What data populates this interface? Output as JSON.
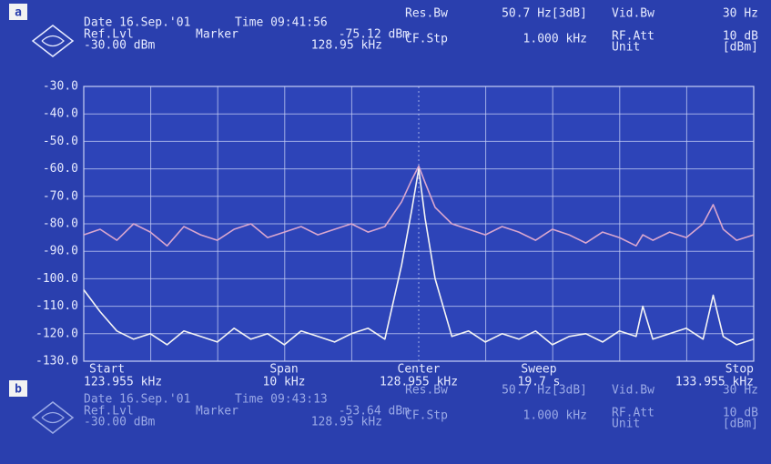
{
  "panels": [
    {
      "label": "a",
      "header": {
        "date": "Date 16.Sep.'01",
        "time": "Time 09:41:56",
        "ref_lvl_label": "Ref.Lvl",
        "ref_lvl": "-30.00 dBm",
        "marker_label": "Marker",
        "marker_level": "-75.12 dBm",
        "marker_freq": "128.95 kHz",
        "res_bw_label": "Res.Bw",
        "res_bw": "50.7 Hz[3dB]",
        "vid_bw_label": "Vid.Bw",
        "vid_bw": "30 Hz",
        "cf_stp_label": "CF.Stp",
        "cf_stp": "1.000 kHz",
        "rf_att_label": "RF.Att",
        "rf_att": "10 dB",
        "unit_label": "Unit",
        "unit": "[dBm]"
      }
    },
    {
      "label": "b",
      "header": {
        "date": "Date 16.Sep.'01",
        "time": "Time 09:43:13",
        "ref_lvl_label": "Ref.Lvl",
        "ref_lvl": "-30.00 dBm",
        "marker_label": "Marker",
        "marker_level": "-53.64 dBm",
        "marker_freq": "128.95 kHz",
        "res_bw_label": "Res.Bw",
        "res_bw": "50.7 Hz[3dB]",
        "vid_bw_label": "Vid.Bw",
        "vid_bw": "30 Hz",
        "cf_stp_label": "CF.Stp",
        "cf_stp": "1.000 kHz",
        "rf_att_label": "RF.Att",
        "rf_att": "10 dB",
        "unit_label": "Unit",
        "unit": "[dBm]"
      }
    }
  ],
  "chart_data": {
    "type": "line",
    "x": [
      123.955,
      124.2,
      124.45,
      124.7,
      124.95,
      125.2,
      125.45,
      125.7,
      125.95,
      126.2,
      126.45,
      126.7,
      126.95,
      127.2,
      127.45,
      127.7,
      127.95,
      128.2,
      128.45,
      128.7,
      128.85,
      128.955,
      129.05,
      129.2,
      129.45,
      129.7,
      129.95,
      130.2,
      130.45,
      130.7,
      130.95,
      131.2,
      131.45,
      131.7,
      131.95,
      132.2,
      132.3,
      132.45,
      132.7,
      132.95,
      133.2,
      133.35,
      133.5,
      133.7,
      133.955
    ],
    "series": [
      {
        "color": "#d9a6cf",
        "values": [
          -84,
          -82,
          -86,
          -80,
          -83,
          -88,
          -81,
          -84,
          -86,
          -82,
          -80,
          -85,
          -83,
          -81,
          -84,
          -82,
          -80,
          -83,
          -81,
          -72,
          -64,
          -59,
          -65,
          -74,
          -80,
          -82,
          -84,
          -81,
          -83,
          -86,
          -82,
          -84,
          -87,
          -83,
          -85,
          -88,
          -84,
          -86,
          -83,
          -85,
          -80,
          -73,
          -82,
          -86,
          -84
        ]
      },
      {
        "color": "#f4f4f4",
        "values": [
          -104,
          -112,
          -119,
          -122,
          -120,
          -124,
          -119,
          -121,
          -123,
          -118,
          -122,
          -120,
          -124,
          -119,
          -121,
          -123,
          -120,
          -118,
          -122,
          -95,
          -75,
          -60,
          -78,
          -100,
          -121,
          -119,
          -123,
          -120,
          -122,
          -119,
          -124,
          -121,
          -120,
          -123,
          -119,
          -121,
          -110,
          -122,
          -120,
          -118,
          -122,
          -106,
          -121,
          -124,
          -122
        ]
      }
    ],
    "xlim": [
      123.955,
      133.955
    ],
    "ylim": [
      -130,
      -30
    ],
    "yticks": [
      {
        "value": -30,
        "label": "-30.0"
      },
      {
        "value": -40,
        "label": "-40.0"
      },
      {
        "value": -50,
        "label": "-50.0"
      },
      {
        "value": -60,
        "label": "-60.0"
      },
      {
        "value": -70,
        "label": "-70.0"
      },
      {
        "value": -80,
        "label": "-80.0"
      },
      {
        "value": -90,
        "label": "-90.0"
      },
      {
        "value": -100,
        "label": "-100.0"
      },
      {
        "value": -110,
        "label": "-110.0"
      },
      {
        "value": -120,
        "label": "-120.0"
      },
      {
        "value": -130,
        "label": "-130.0"
      }
    ],
    "grid": true,
    "x_labels": [
      {
        "name": "Start",
        "value": "123.955 kHz"
      },
      {
        "name": "Span",
        "value": "10 kHz"
      },
      {
        "name": "Center",
        "value": "128.955 kHz"
      },
      {
        "name": "Sweep",
        "value": "19.7 s"
      },
      {
        "name": "Stop",
        "value": "133.955 kHz"
      }
    ]
  }
}
